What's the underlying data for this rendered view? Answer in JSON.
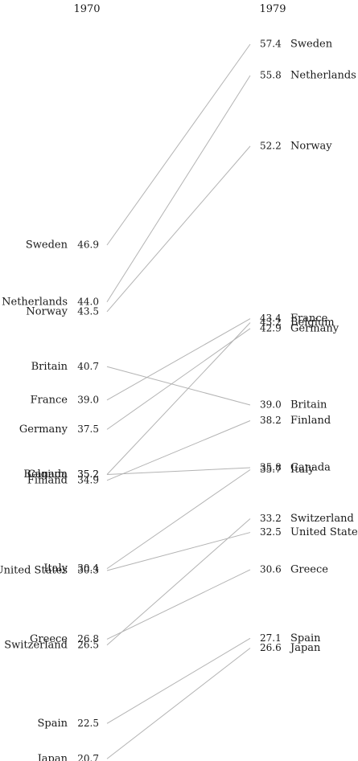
{
  "chart_data": {
    "type": "slope",
    "left_year": "1970",
    "right_year": "1979",
    "series": [
      {
        "name": "Sweden",
        "v1970": 46.9,
        "v1979": 57.4
      },
      {
        "name": "Netherlands",
        "v1970": 44.0,
        "v1979": 55.8
      },
      {
        "name": "Norway",
        "v1970": 43.5,
        "v1979": 52.2
      },
      {
        "name": "Britain",
        "v1970": 40.7,
        "v1979": 39.0
      },
      {
        "name": "France",
        "v1970": 39.0,
        "v1979": 43.4
      },
      {
        "name": "Germany",
        "v1970": 37.5,
        "v1979": 42.9
      },
      {
        "name": "Belgium",
        "v1970": 35.2,
        "v1979": 43.2
      },
      {
        "name": "Canada",
        "v1970": 35.2,
        "v1979": 35.8
      },
      {
        "name": "Finland",
        "v1970": 34.9,
        "v1979": 38.2
      },
      {
        "name": "Italy",
        "v1970": 30.4,
        "v1979": 35.7
      },
      {
        "name": "United States",
        "v1970": 30.3,
        "v1979": 32.5
      },
      {
        "name": "Greece",
        "v1970": 26.8,
        "v1979": 30.6
      },
      {
        "name": "Switzerland",
        "v1970": 26.5,
        "v1979": 33.2
      },
      {
        "name": "Spain",
        "v1970": 22.5,
        "v1979": 27.1
      },
      {
        "name": "Japan",
        "v1970": 20.7,
        "v1979": 26.6
      }
    ]
  }
}
